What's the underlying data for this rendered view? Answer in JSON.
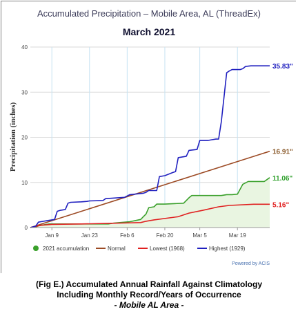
{
  "caption": {
    "line1": "(Fig E.) Accumulated Annual Rainfall  Against  Climatology",
    "line2": "Including  Monthly Record/Years of Occurrence",
    "line3": "- Mobile AL Area -"
  },
  "chart_data": {
    "type": "line",
    "title": "Accumulated Precipitation – Mobile Area, AL (ThreadEx)",
    "subtitle": "March 2021",
    "xlabel": "",
    "ylabel": "Precipitation (inches)",
    "ylim": [
      0,
      40
    ],
    "yticks": [
      0,
      10,
      20,
      30,
      40
    ],
    "xlim": [
      1,
      90
    ],
    "x_unit": "day of year",
    "xticks": [
      {
        "day": 9,
        "label": "Jan 9"
      },
      {
        "day": 23,
        "label": "Jan 23"
      },
      {
        "day": 37,
        "label": "Feb 6"
      },
      {
        "day": 51,
        "label": "Feb 20"
      },
      {
        "day": 64,
        "label": "Mar 5"
      },
      {
        "day": 78,
        "label": "Mar 19"
      }
    ],
    "grid": true,
    "legend_position": "bottom",
    "credit": "Powered by ACIS",
    "series": [
      {
        "name": "2021 accumulation",
        "color": "#3aa02b",
        "fill": "#e9f5e1",
        "end_label": "11.06\"",
        "x": [
          1,
          3,
          4,
          6,
          8,
          10,
          30,
          32,
          38,
          42,
          43,
          44,
          45,
          47,
          48,
          51,
          58,
          60,
          61,
          72,
          74,
          76,
          78,
          80,
          82,
          88,
          90
        ],
        "values": [
          0.0,
          0.1,
          0.4,
          0.6,
          0.8,
          0.8,
          0.8,
          1.0,
          1.3,
          1.8,
          2.4,
          3.0,
          4.4,
          4.6,
          5.2,
          5.2,
          5.4,
          6.6,
          7.1,
          7.1,
          7.3,
          7.3,
          7.4,
          9.6,
          10.2,
          10.2,
          11.06
        ]
      },
      {
        "name": "Normal",
        "color": "#9c4a24",
        "end_label": "16.91\"",
        "x": [
          1,
          90
        ],
        "values": [
          0.0,
          16.91
        ]
      },
      {
        "name": "Lowest (1968)",
        "color": "#e02020",
        "end_label": "5.16\"",
        "x": [
          1,
          5,
          9,
          20,
          29,
          35,
          42,
          44,
          47,
          56,
          60,
          65,
          71,
          75,
          84,
          90
        ],
        "values": [
          0.0,
          0.5,
          0.7,
          0.8,
          0.9,
          1.0,
          1.1,
          1.4,
          1.7,
          2.4,
          3.2,
          3.8,
          4.6,
          4.9,
          5.16,
          5.16
        ]
      },
      {
        "name": "Highest (1929)",
        "color": "#1f1fbf",
        "end_label": "35.83\"",
        "x": [
          1,
          3,
          4,
          5,
          7,
          10,
          11,
          12,
          14,
          15,
          16,
          20,
          22,
          23,
          28,
          29,
          36,
          37,
          38,
          43,
          44,
          45,
          48,
          49,
          51,
          54,
          55,
          56,
          59,
          60,
          63,
          64,
          67,
          68,
          70,
          71,
          72,
          74,
          75,
          76,
          79,
          80,
          81,
          83,
          86,
          90
        ],
        "values": [
          0.0,
          0.3,
          1.2,
          1.3,
          1.5,
          1.8,
          3.6,
          3.8,
          4.0,
          5.4,
          5.6,
          5.7,
          5.8,
          5.9,
          6.0,
          6.4,
          6.7,
          7.0,
          7.3,
          7.6,
          7.8,
          8.2,
          8.2,
          11.3,
          11.5,
          12.2,
          12.4,
          15.5,
          15.8,
          17.1,
          17.3,
          19.3,
          19.3,
          19.4,
          19.6,
          19.6,
          23.4,
          34.3,
          34.7,
          35.0,
          35.0,
          35.2,
          35.7,
          35.83,
          35.83,
          35.83
        ]
      }
    ]
  }
}
